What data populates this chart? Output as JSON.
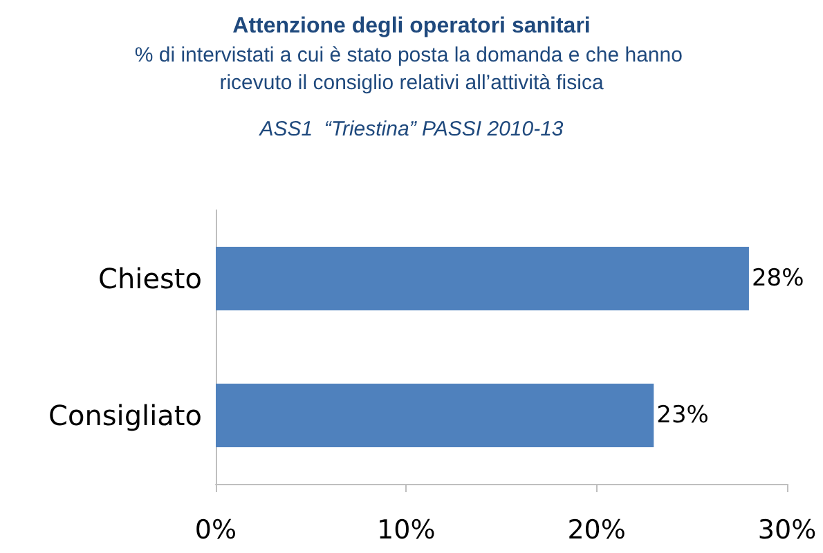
{
  "chart_data": {
    "type": "bar",
    "orientation": "horizontal",
    "title": "Attenzione degli operatori sanitari",
    "subtitle": "% di intervistati a cui è stato posta la domanda e che hanno ricevuto il consiglio relativi all’attività fisica",
    "annotations": [
      "ASS1  “Triestina” PASSI 2010-13"
    ],
    "categories": [
      "Chiesto",
      "Consigliato"
    ],
    "values": [
      28,
      23
    ],
    "color": "#4f81bd",
    "value_labels": [
      "28%",
      "23%"
    ],
    "xlim": [
      0,
      30
    ],
    "xticks": [
      {
        "value": 0,
        "label": "0%"
      },
      {
        "value": 10,
        "label": "10%"
      },
      {
        "value": 20,
        "label": "20%"
      },
      {
        "value": 30,
        "label": "30%"
      }
    ]
  }
}
